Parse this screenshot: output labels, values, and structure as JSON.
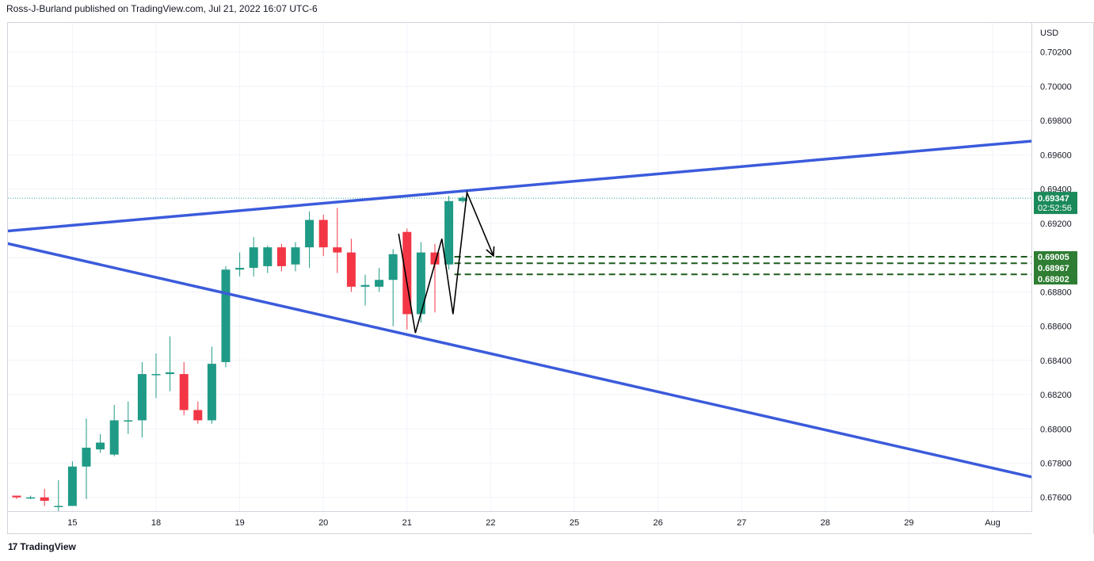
{
  "header": {
    "attribution": "Ross-J-Burland published on TradingView.com, Jul 21, 2022 16:07 UTC-6"
  },
  "footer": {
    "brand": "TradingView",
    "brand_mark": "17"
  },
  "colors": {
    "up": "#26a69a",
    "down": "#ef5350",
    "up_body": "#1f9a86",
    "down_body": "#f23645",
    "trendline": "#3b5bdb",
    "support": "#1e5b1e",
    "price_label_bg": "#2e7d32",
    "last_price_bg": "#1b8a5a",
    "grid": "#f0f3fa",
    "annotation": "#000000"
  },
  "chart_data": {
    "type": "candlestick",
    "symbol_currency": "USD",
    "ylim": [
      0.6752,
      0.7037
    ],
    "y_ticks": [
      0.676,
      0.678,
      0.68,
      0.682,
      0.684,
      0.686,
      0.688,
      0.69,
      0.692,
      0.694,
      0.696,
      0.698,
      0.7,
      0.702
    ],
    "y_tick_labels": [
      "0.67600",
      "0.67800",
      "0.68000",
      "0.68200",
      "0.68400",
      "0.68600",
      "0.68800",
      "0.69000",
      "0.69200",
      "0.69400",
      "0.69600",
      "0.69800",
      "0.70000",
      "0.70200"
    ],
    "x_tick_labels": [
      {
        "label": "15",
        "bar": 4
      },
      {
        "label": "18",
        "bar": 10
      },
      {
        "label": "19",
        "bar": 16
      },
      {
        "label": "20",
        "bar": 22
      },
      {
        "label": "21",
        "bar": 28
      },
      {
        "label": "22",
        "bar": 34
      },
      {
        "label": "25",
        "bar": 40
      },
      {
        "label": "26",
        "bar": 46
      },
      {
        "label": "27",
        "bar": 52
      },
      {
        "label": "28",
        "bar": 58
      },
      {
        "label": "29",
        "bar": 64
      },
      {
        "label": "Aug",
        "bar": 70
      }
    ],
    "candles": [
      {
        "o": 0.6761,
        "h": 0.6761,
        "l": 0.6759,
        "c": 0.676
      },
      {
        "o": 0.676,
        "h": 0.6761,
        "l": 0.6759,
        "c": 0.676
      },
      {
        "o": 0.676,
        "h": 0.6765,
        "l": 0.6755,
        "c": 0.6758
      },
      {
        "o": 0.6755,
        "h": 0.677,
        "l": 0.675,
        "c": 0.6755
      },
      {
        "o": 0.6755,
        "h": 0.6781,
        "l": 0.6755,
        "c": 0.6778
      },
      {
        "o": 0.6778,
        "h": 0.6806,
        "l": 0.6759,
        "c": 0.6789
      },
      {
        "o": 0.6788,
        "h": 0.6797,
        "l": 0.6786,
        "c": 0.6792
      },
      {
        "o": 0.6785,
        "h": 0.6814,
        "l": 0.6784,
        "c": 0.6805
      },
      {
        "o": 0.6805,
        "h": 0.6816,
        "l": 0.6797,
        "c": 0.6805
      },
      {
        "o": 0.6805,
        "h": 0.6839,
        "l": 0.6795,
        "c": 0.6832
      },
      {
        "o": 0.6832,
        "h": 0.6844,
        "l": 0.6818,
        "c": 0.6832
      },
      {
        "o": 0.6832,
        "h": 0.6854,
        "l": 0.6822,
        "c": 0.6833
      },
      {
        "o": 0.6832,
        "h": 0.6839,
        "l": 0.6808,
        "c": 0.6811
      },
      {
        "o": 0.6811,
        "h": 0.6816,
        "l": 0.6803,
        "c": 0.6805
      },
      {
        "o": 0.6805,
        "h": 0.6848,
        "l": 0.6803,
        "c": 0.6838
      },
      {
        "o": 0.6839,
        "h": 0.6895,
        "l": 0.6836,
        "c": 0.6893
      },
      {
        "o": 0.6893,
        "h": 0.6903,
        "l": 0.6889,
        "c": 0.6894
      },
      {
        "o": 0.6894,
        "h": 0.6912,
        "l": 0.6889,
        "c": 0.6906
      },
      {
        "o": 0.6895,
        "h": 0.6907,
        "l": 0.6891,
        "c": 0.6906
      },
      {
        "o": 0.6906,
        "h": 0.6908,
        "l": 0.6892,
        "c": 0.6895
      },
      {
        "o": 0.6896,
        "h": 0.6909,
        "l": 0.6892,
        "c": 0.6906
      },
      {
        "o": 0.6906,
        "h": 0.6927,
        "l": 0.6894,
        "c": 0.6922
      },
      {
        "o": 0.6922,
        "h": 0.6925,
        "l": 0.6901,
        "c": 0.6906
      },
      {
        "o": 0.6906,
        "h": 0.6929,
        "l": 0.6891,
        "c": 0.6903
      },
      {
        "o": 0.6903,
        "h": 0.6911,
        "l": 0.688,
        "c": 0.6883
      },
      {
        "o": 0.6883,
        "h": 0.689,
        "l": 0.6872,
        "c": 0.6884
      },
      {
        "o": 0.6883,
        "h": 0.6894,
        "l": 0.688,
        "c": 0.6887
      },
      {
        "o": 0.6887,
        "h": 0.6905,
        "l": 0.686,
        "c": 0.6902
      },
      {
        "o": 0.6915,
        "h": 0.6917,
        "l": 0.6858,
        "c": 0.6867
      },
      {
        "o": 0.6867,
        "h": 0.6909,
        "l": 0.6862,
        "c": 0.6903
      },
      {
        "o": 0.6903,
        "h": 0.6908,
        "l": 0.6868,
        "c": 0.6896
      },
      {
        "o": 0.6896,
        "h": 0.6936,
        "l": 0.6893,
        "c": 0.6933
      },
      {
        "o": 0.6933,
        "h": 0.6936,
        "l": 0.6932,
        "c": 0.6935
      }
    ],
    "trendlines": [
      {
        "name": "upper",
        "from": {
          "bar": -3.5,
          "y": 0.69135
        },
        "to": {
          "bar": 73.3,
          "y": 0.69684
        }
      },
      {
        "name": "lower",
        "from": {
          "bar": -3.5,
          "y": 0.69135
        },
        "to": {
          "bar": 73.3,
          "y": 0.6771
        }
      }
    ],
    "support_levels": [
      {
        "value": 0.69005,
        "label": "0.69005"
      },
      {
        "value": 0.68967,
        "label": "0.68967"
      },
      {
        "value": 0.68902,
        "label": "0.68902"
      }
    ],
    "support_start_bar": 31.4,
    "last_price": {
      "value": 0.69347,
      "label": "0.69347",
      "countdown": "02:52:56"
    },
    "annotation_path": [
      {
        "bar": 27.4,
        "y": 0.6914
      },
      {
        "bar": 28.6,
        "y": 0.6856
      },
      {
        "bar": 30.5,
        "y": 0.6911
      },
      {
        "bar": 31.3,
        "y": 0.6867
      },
      {
        "bar": 32.3,
        "y": 0.6938
      },
      {
        "bar": 34.2,
        "y": 0.6901
      }
    ]
  }
}
